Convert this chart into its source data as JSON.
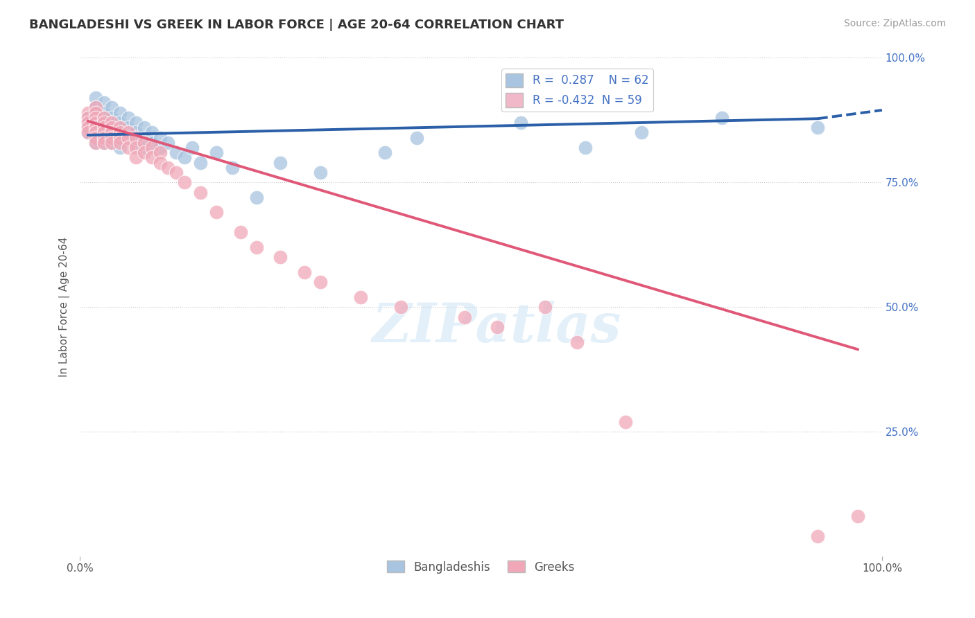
{
  "title": "BANGLADESHI VS GREEK IN LABOR FORCE | AGE 20-64 CORRELATION CHART",
  "source": "Source: ZipAtlas.com",
  "ylabel": "In Labor Force | Age 20-64",
  "xlim": [
    0,
    1.0
  ],
  "ylim": [
    0,
    1.0
  ],
  "xtick_labels": [
    "0.0%",
    "100.0%"
  ],
  "ytick_labels": [
    "25.0%",
    "50.0%",
    "75.0%",
    "100.0%"
  ],
  "ytick_positions": [
    0.25,
    0.5,
    0.75,
    1.0
  ],
  "blue_color": "#a8c4e0",
  "blue_line_color": "#2b5fa8",
  "pink_color": "#f0a8b8",
  "pink_line_color": "#e05878",
  "legend_blue_color": "#a8c4e0",
  "legend_pink_color": "#f0b8c8",
  "R_blue": 0.287,
  "N_blue": 62,
  "R_pink": -0.432,
  "N_pink": 59,
  "watermark": "ZIPatlas",
  "background_color": "#ffffff",
  "grid_color": "#cccccc",
  "blue_scatter_x": [
    0.01,
    0.01,
    0.01,
    0.01,
    0.02,
    0.02,
    0.02,
    0.02,
    0.02,
    0.02,
    0.02,
    0.02,
    0.02,
    0.03,
    0.03,
    0.03,
    0.03,
    0.03,
    0.03,
    0.03,
    0.03,
    0.04,
    0.04,
    0.04,
    0.04,
    0.04,
    0.04,
    0.05,
    0.05,
    0.05,
    0.05,
    0.05,
    0.06,
    0.06,
    0.06,
    0.07,
    0.07,
    0.07,
    0.08,
    0.08,
    0.08,
    0.09,
    0.09,
    0.1,
    0.1,
    0.11,
    0.12,
    0.13,
    0.14,
    0.15,
    0.17,
    0.19,
    0.22,
    0.25,
    0.3,
    0.38,
    0.42,
    0.55,
    0.63,
    0.7,
    0.8,
    0.92
  ],
  "blue_scatter_y": [
    0.88,
    0.87,
    0.86,
    0.85,
    0.92,
    0.9,
    0.89,
    0.88,
    0.87,
    0.86,
    0.85,
    0.84,
    0.83,
    0.91,
    0.89,
    0.88,
    0.87,
    0.86,
    0.85,
    0.84,
    0.83,
    0.9,
    0.88,
    0.87,
    0.86,
    0.84,
    0.83,
    0.89,
    0.87,
    0.86,
    0.84,
    0.82,
    0.88,
    0.86,
    0.84,
    0.87,
    0.85,
    0.83,
    0.86,
    0.84,
    0.82,
    0.85,
    0.83,
    0.84,
    0.82,
    0.83,
    0.81,
    0.8,
    0.82,
    0.79,
    0.81,
    0.78,
    0.72,
    0.79,
    0.77,
    0.81,
    0.84,
    0.87,
    0.82,
    0.85,
    0.88,
    0.86
  ],
  "pink_scatter_x": [
    0.01,
    0.01,
    0.01,
    0.01,
    0.01,
    0.02,
    0.02,
    0.02,
    0.02,
    0.02,
    0.02,
    0.02,
    0.02,
    0.03,
    0.03,
    0.03,
    0.03,
    0.03,
    0.03,
    0.04,
    0.04,
    0.04,
    0.04,
    0.04,
    0.05,
    0.05,
    0.05,
    0.05,
    0.06,
    0.06,
    0.06,
    0.07,
    0.07,
    0.07,
    0.08,
    0.08,
    0.09,
    0.09,
    0.1,
    0.1,
    0.11,
    0.12,
    0.13,
    0.15,
    0.17,
    0.2,
    0.22,
    0.25,
    0.28,
    0.3,
    0.35,
    0.4,
    0.48,
    0.52,
    0.58,
    0.62,
    0.68,
    0.92,
    0.97
  ],
  "pink_scatter_y": [
    0.89,
    0.88,
    0.87,
    0.86,
    0.85,
    0.9,
    0.89,
    0.88,
    0.87,
    0.86,
    0.85,
    0.84,
    0.83,
    0.88,
    0.87,
    0.86,
    0.85,
    0.84,
    0.83,
    0.87,
    0.86,
    0.85,
    0.84,
    0.83,
    0.86,
    0.85,
    0.84,
    0.83,
    0.85,
    0.84,
    0.82,
    0.84,
    0.82,
    0.8,
    0.83,
    0.81,
    0.82,
    0.8,
    0.81,
    0.79,
    0.78,
    0.77,
    0.75,
    0.73,
    0.69,
    0.65,
    0.62,
    0.6,
    0.57,
    0.55,
    0.52,
    0.5,
    0.48,
    0.46,
    0.5,
    0.43,
    0.27,
    0.04,
    0.08
  ],
  "blue_line_x_start": 0.01,
  "blue_line_x_solid_end": 0.92,
  "blue_line_x_dashed_end": 1.0,
  "blue_line_y_start": 0.845,
  "blue_line_y_solid_end": 0.878,
  "blue_line_y_dashed_end": 0.895,
  "pink_line_x_start": 0.01,
  "pink_line_x_end": 0.97,
  "pink_line_y_start": 0.873,
  "pink_line_y_end": 0.415,
  "title_fontsize": 13,
  "axis_label_fontsize": 11,
  "tick_fontsize": 11,
  "legend_fontsize": 12
}
